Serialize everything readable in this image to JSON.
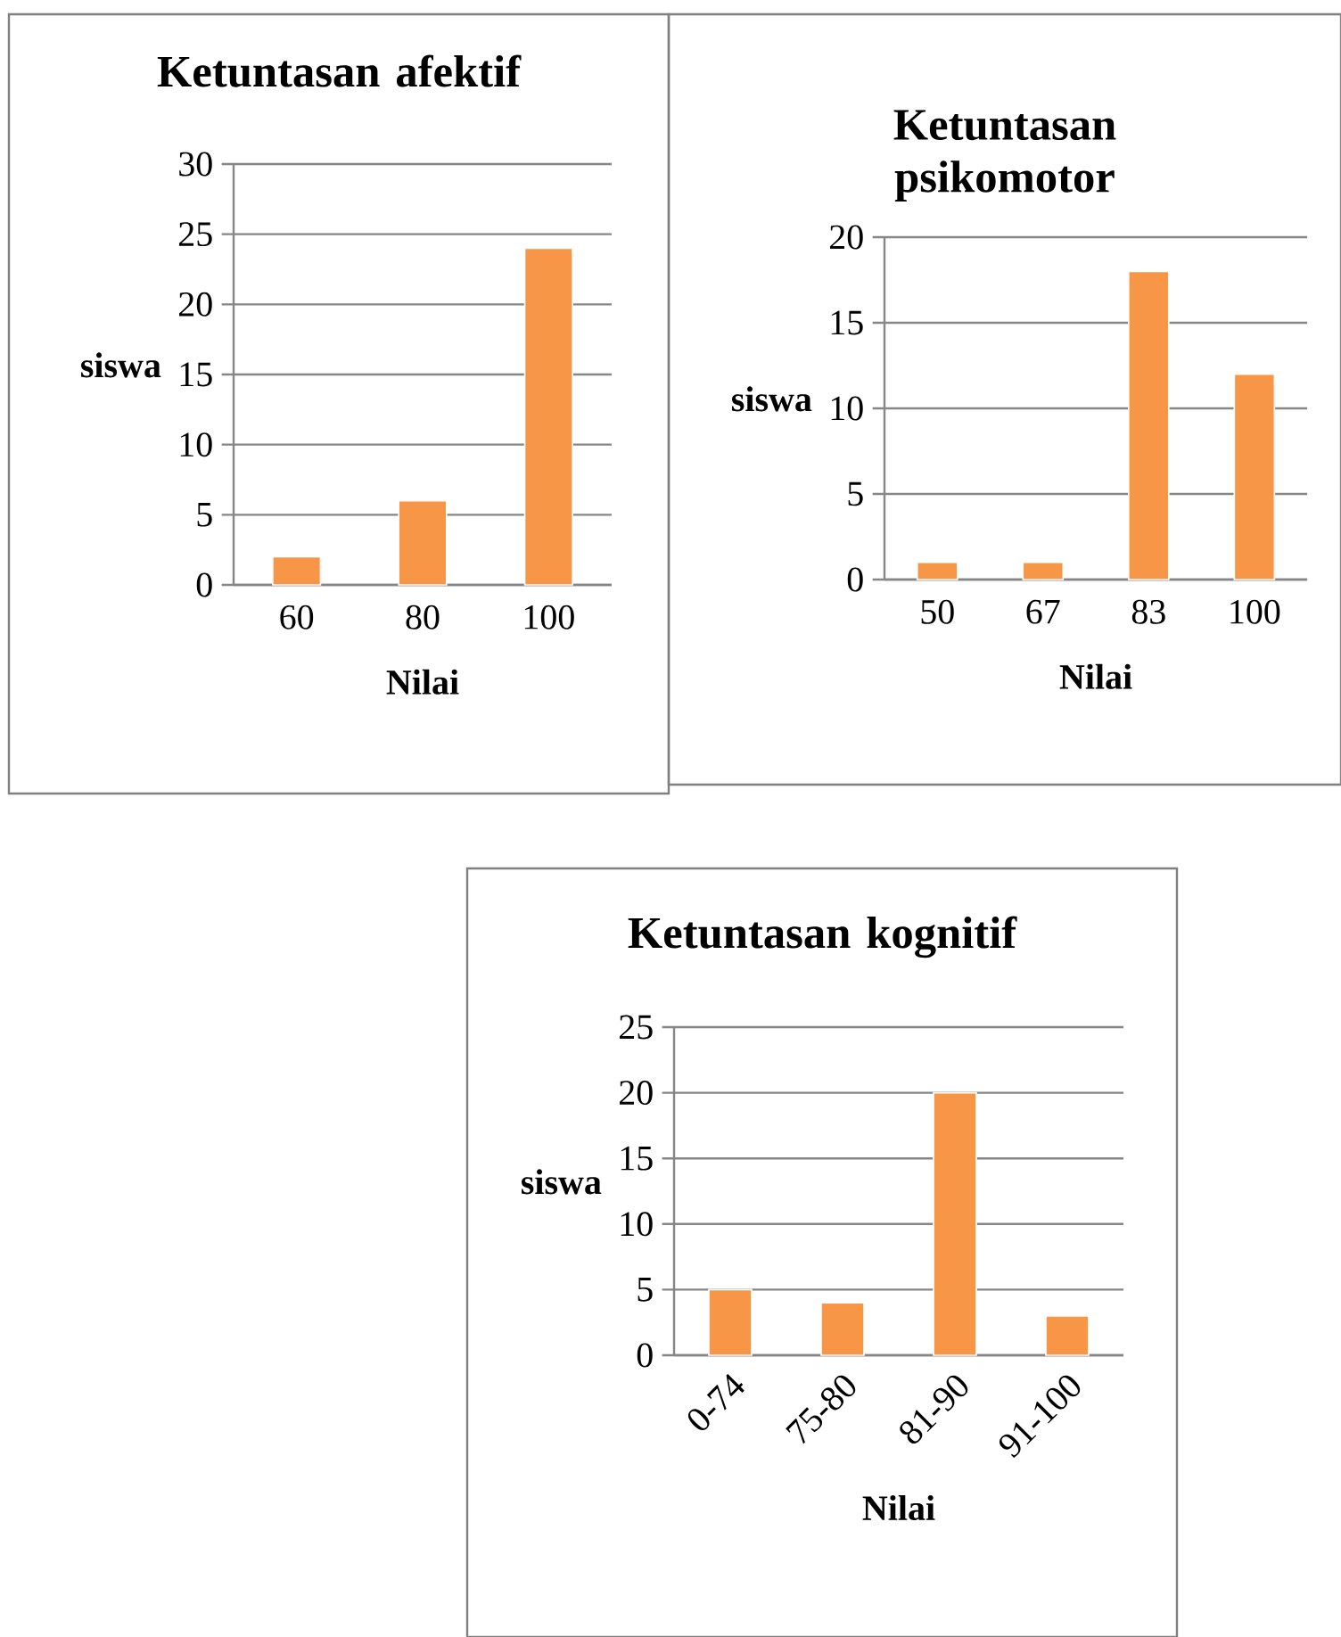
{
  "chart_data": [
    {
      "type": "bar",
      "title": "Ketuntasan afektif",
      "xlabel": "Nilai",
      "ylabel": "siswa",
      "categories": [
        "60",
        "80",
        "100"
      ],
      "values": [
        2,
        6,
        24
      ],
      "color": "#f79646",
      "ylim": [
        0,
        30
      ],
      "yticks": [
        0,
        5,
        10,
        15,
        20,
        25,
        30
      ],
      "grid": "y"
    },
    {
      "type": "bar",
      "title": "Ketuntasan psikomotor",
      "xlabel": "Nilai",
      "ylabel": "siswa",
      "categories": [
        "50",
        "67",
        "83",
        "100"
      ],
      "values": [
        1,
        1,
        18,
        12
      ],
      "color": "#f79646",
      "ylim": [
        0,
        20
      ],
      "yticks": [
        0,
        5,
        10,
        15,
        20
      ],
      "grid": "y"
    },
    {
      "type": "bar",
      "title": "Ketuntasan kognitif",
      "xlabel": "Nilai",
      "ylabel": "siswa",
      "categories": [
        "0-74",
        "75-80",
        "81-90",
        "91-100"
      ],
      "values": [
        5,
        4,
        20,
        3
      ],
      "color": "#f79646",
      "ylim": [
        0,
        25
      ],
      "yticks": [
        0,
        5,
        10,
        15,
        20,
        25
      ],
      "grid": "y"
    }
  ]
}
